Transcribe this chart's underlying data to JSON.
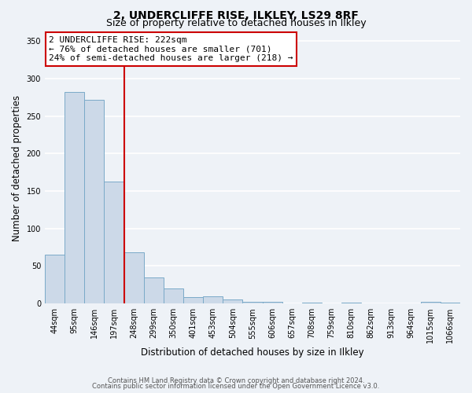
{
  "title": "2, UNDERCLIFFE RISE, ILKLEY, LS29 8RF",
  "subtitle": "Size of property relative to detached houses in Ilkley",
  "xlabel": "Distribution of detached houses by size in Ilkley",
  "ylabel": "Number of detached properties",
  "bar_labels": [
    "44sqm",
    "95sqm",
    "146sqm",
    "197sqm",
    "248sqm",
    "299sqm",
    "350sqm",
    "401sqm",
    "453sqm",
    "504sqm",
    "555sqm",
    "606sqm",
    "657sqm",
    "708sqm",
    "759sqm",
    "810sqm",
    "862sqm",
    "913sqm",
    "964sqm",
    "1015sqm",
    "1066sqm"
  ],
  "bar_values": [
    65,
    282,
    272,
    163,
    68,
    35,
    20,
    9,
    10,
    5,
    2,
    2,
    0,
    1,
    0,
    1,
    0,
    0,
    0,
    2,
    1
  ],
  "bar_color": "#ccd9e8",
  "bar_edge_color": "#7aaac8",
  "annotation_label": "2 UNDERCLIFFE RISE: 222sqm",
  "annotation_line1": "← 76% of detached houses are smaller (701)",
  "annotation_line2": "24% of semi-detached houses are larger (218) →",
  "ylim": [
    0,
    360
  ],
  "yticks": [
    0,
    50,
    100,
    150,
    200,
    250,
    300,
    350
  ],
  "marker_bar_index": 3,
  "box_color": "#cc0000",
  "footer_line1": "Contains HM Land Registry data © Crown copyright and database right 2024.",
  "footer_line2": "Contains public sector information licensed under the Open Government Licence v3.0.",
  "bg_color": "#eef2f7",
  "grid_color": "#ffffff",
  "title_fontsize": 10,
  "subtitle_fontsize": 9,
  "axis_label_fontsize": 8.5,
  "tick_fontsize": 7,
  "annot_fontsize": 8,
  "footer_fontsize": 6
}
